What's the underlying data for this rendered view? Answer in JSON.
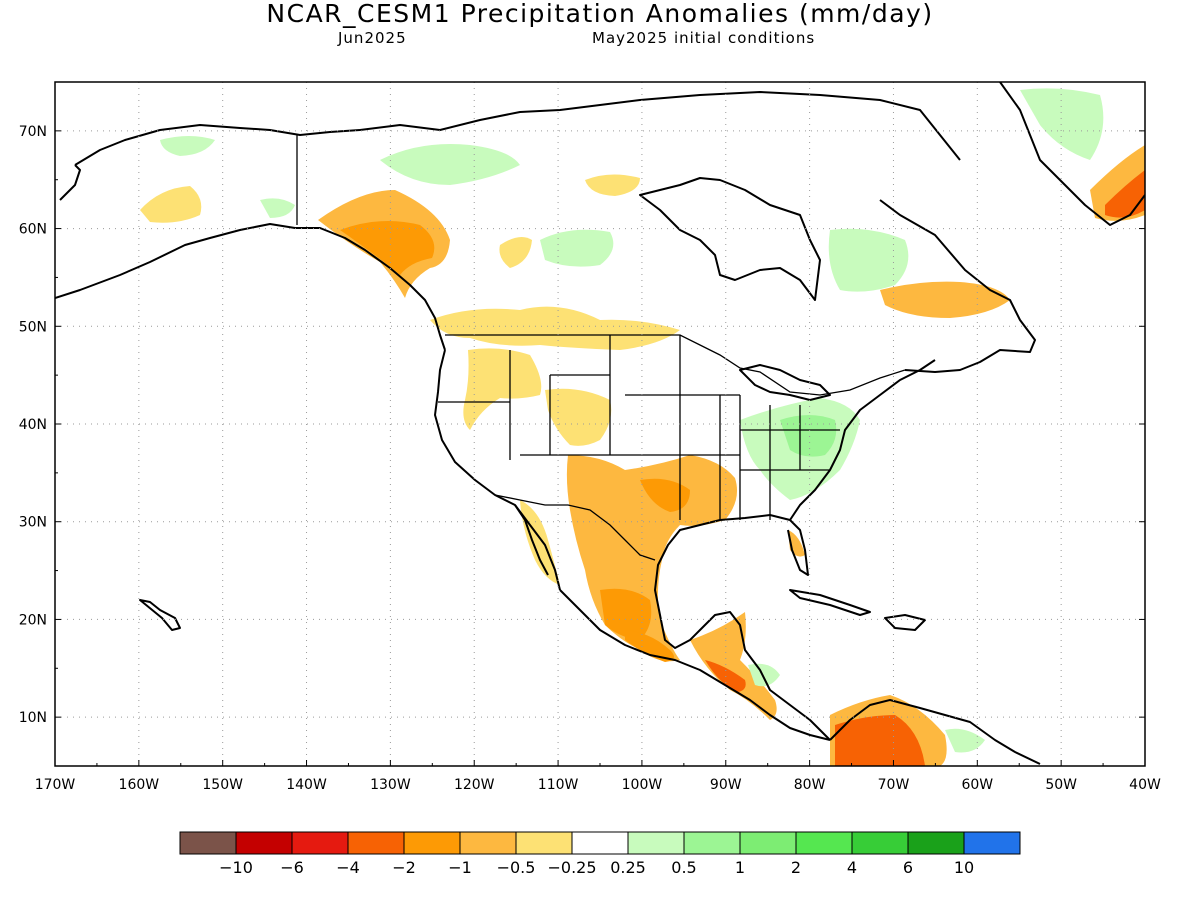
{
  "title": "NCAR_CESM1 Precipitation Anomalies (mm/day)",
  "subtitle_left": "Jun2025",
  "subtitle_right": "May2025 initial conditions",
  "map": {
    "region": "North America",
    "projection": "lat-lon",
    "lon_range": [
      -170,
      -40
    ],
    "lat_range": [
      5,
      75
    ],
    "lat_labels": [
      "70N",
      "60N",
      "50N",
      "40N",
      "30N",
      "20N",
      "10N"
    ],
    "lon_labels": [
      "170W",
      "160W",
      "150W",
      "140W",
      "130W",
      "120W",
      "110W",
      "100W",
      "90W",
      "80W",
      "70W",
      "60W",
      "50W",
      "40W"
    ],
    "grid": "dotted"
  },
  "colorbar": {
    "colors": [
      "#7b5349",
      "#c40000",
      "#e51a10",
      "#f76204",
      "#fd9a05",
      "#fdb840",
      "#fde174",
      "#ffffff",
      "#c8fbbd",
      "#9cf594",
      "#7ded73",
      "#55e750",
      "#37cd37",
      "#1aa11a",
      "#2173ea"
    ],
    "labels": [
      "-10",
      "-6",
      "-4",
      "-2",
      "-1",
      "-0.5",
      "-0.25",
      "0.25",
      "0.5",
      "1",
      "2",
      "4",
      "6",
      "10"
    ]
  }
}
